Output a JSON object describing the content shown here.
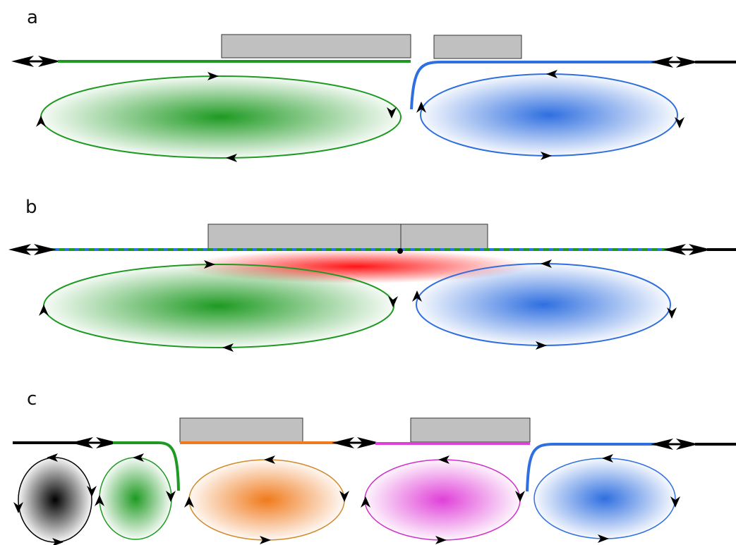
{
  "panels": [
    {
      "label": "a"
    },
    {
      "label": "b"
    },
    {
      "label": "c"
    }
  ],
  "colors": {
    "green": "#1e9a22",
    "blue": "#2f6fe0",
    "red": "#ff1414",
    "orange": "#f07a1c",
    "magenta": "#e040d8",
    "black": "#000000",
    "gate_fill": "#c0c0c0"
  }
}
